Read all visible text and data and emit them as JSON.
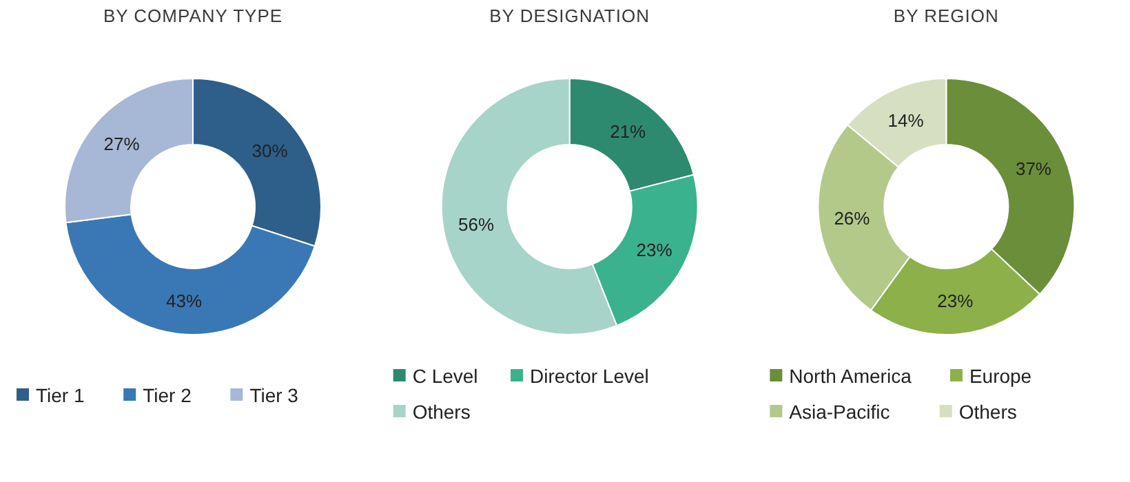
{
  "chart_data": [
    {
      "type": "donut",
      "title": "BY COMPANY TYPE",
      "categories": [
        "Tier 1",
        "Tier 2",
        "Tier 3"
      ],
      "values": [
        30,
        43,
        27
      ],
      "value_labels": [
        "30%",
        "43%",
        "27%"
      ],
      "colors": [
        "#2e5f8a",
        "#3a78b5",
        "#a6b8d6"
      ],
      "legend": "bottom"
    },
    {
      "type": "donut",
      "title": "BY DESIGNATION",
      "categories": [
        "C Level",
        "Director Level",
        "Others"
      ],
      "values": [
        21,
        23,
        56
      ],
      "value_labels": [
        "21%",
        "23%",
        "56%"
      ],
      "colors": [
        "#2e8a6e",
        "#3bb28e",
        "#a7d4c8"
      ],
      "legend": "bottom"
    },
    {
      "type": "donut",
      "title": "BY REGION",
      "categories": [
        "North America",
        "Europe",
        "Asia-Pacific",
        "Others"
      ],
      "values": [
        37,
        23,
        26,
        14
      ],
      "value_labels": [
        "37%",
        "23%",
        "26%",
        "14%"
      ],
      "colors": [
        "#6b8e3a",
        "#8db04a",
        "#b3c98a",
        "#d6e0c0"
      ],
      "legend": "bottom"
    }
  ]
}
